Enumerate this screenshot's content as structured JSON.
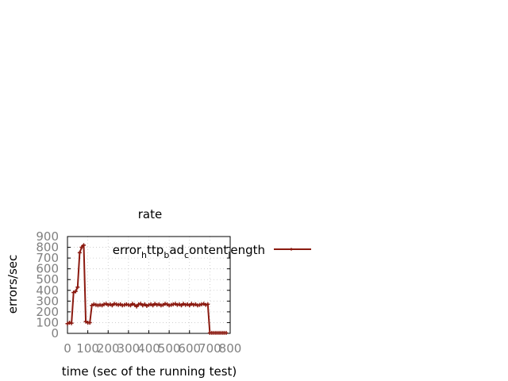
{
  "chart_data": {
    "type": "line",
    "title": "rate",
    "xlabel": "time (sec of the running test)",
    "ylabel": "errors/sec",
    "xlim": [
      0,
      800
    ],
    "ylim": [
      0,
      900
    ],
    "xticks": [
      0,
      100,
      200,
      300,
      400,
      500,
      600,
      700,
      800
    ],
    "yticks": [
      0,
      100,
      200,
      300,
      400,
      500,
      600,
      700,
      800,
      900
    ],
    "grid": true,
    "legend_position": "top-right",
    "series": [
      {
        "name": "error_http_bad_content_length",
        "legend_main": [
          "error",
          "ttp",
          "ad",
          "ontent",
          "ength"
        ],
        "legend_sub": [
          "h",
          "b",
          "c",
          "l"
        ],
        "color": "#8b1a10",
        "x": [
          0,
          10,
          20,
          30,
          40,
          50,
          60,
          70,
          80,
          90,
          100,
          110,
          120,
          130,
          140,
          150,
          160,
          170,
          180,
          190,
          200,
          210,
          220,
          230,
          240,
          250,
          260,
          270,
          280,
          290,
          300,
          310,
          320,
          330,
          340,
          350,
          360,
          370,
          380,
          390,
          400,
          410,
          420,
          430,
          440,
          450,
          460,
          470,
          480,
          490,
          500,
          510,
          520,
          530,
          540,
          550,
          560,
          570,
          580,
          590,
          600,
          610,
          620,
          630,
          640,
          650,
          660,
          670,
          680,
          690,
          700,
          710,
          720,
          730,
          740,
          750,
          760,
          770,
          780
        ],
        "y": [
          90,
          100,
          95,
          380,
          390,
          430,
          750,
          800,
          820,
          110,
          100,
          100,
          260,
          270,
          265,
          260,
          265,
          260,
          270,
          275,
          265,
          270,
          260,
          275,
          270,
          265,
          270,
          260,
          265,
          270,
          265,
          260,
          275,
          265,
          250,
          270,
          275,
          260,
          270,
          255,
          265,
          270,
          260,
          275,
          265,
          270,
          260,
          265,
          275,
          270,
          260,
          265,
          270,
          275,
          265,
          270,
          260,
          275,
          265,
          270,
          260,
          275,
          265,
          270,
          260,
          265,
          270,
          275,
          265,
          270,
          5,
          5,
          5,
          5,
          5,
          5,
          5,
          5,
          5
        ]
      }
    ]
  }
}
